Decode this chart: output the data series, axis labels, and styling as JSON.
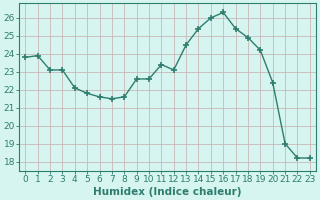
{
  "x": [
    0,
    1,
    2,
    3,
    4,
    5,
    6,
    7,
    8,
    9,
    10,
    11,
    12,
    13,
    14,
    15,
    16,
    17,
    18,
    19,
    20,
    21,
    22,
    23
  ],
  "y": [
    23.8,
    23.9,
    23.1,
    23.1,
    22.1,
    21.8,
    21.6,
    21.5,
    21.6,
    22.6,
    22.6,
    23.4,
    23.1,
    24.5,
    25.4,
    26.0,
    26.3,
    25.4,
    24.9,
    24.2,
    22.4,
    19.0,
    18.2,
    18.2
  ],
  "line_color": "#2e7d6e",
  "marker": "+",
  "markersize": 4,
  "linewidth": 1.0,
  "bg_color": "#d6f5f0",
  "grid_color": "#c8b8b8",
  "xlabel": "Humidex (Indice chaleur)",
  "xlim": [
    -0.5,
    23.5
  ],
  "ylim": [
    17.5,
    26.8
  ],
  "yticks": [
    18,
    19,
    20,
    21,
    22,
    23,
    24,
    25,
    26
  ],
  "xticks": [
    0,
    1,
    2,
    3,
    4,
    5,
    6,
    7,
    8,
    9,
    10,
    11,
    12,
    13,
    14,
    15,
    16,
    17,
    18,
    19,
    20,
    21,
    22,
    23
  ],
  "xlabel_fontsize": 7.5,
  "tick_fontsize": 6.5
}
